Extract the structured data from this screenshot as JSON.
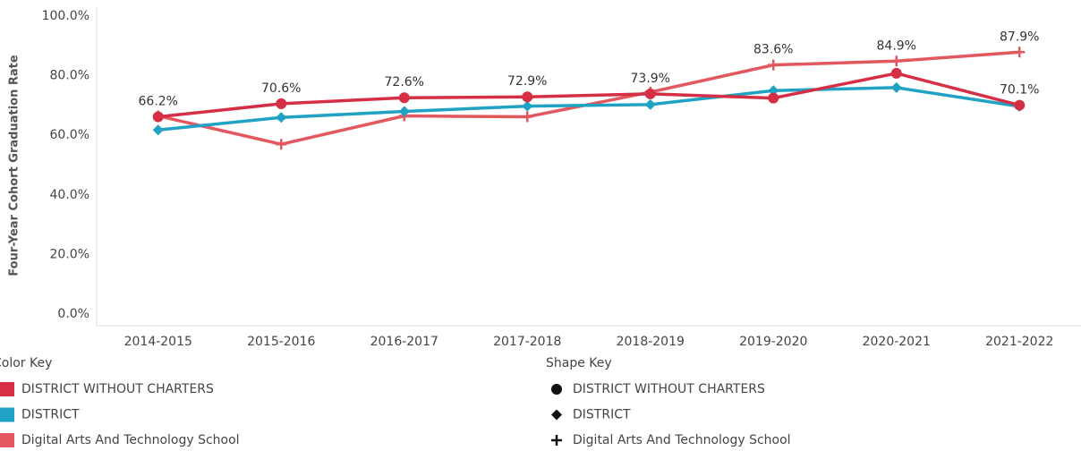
{
  "chart_data": {
    "type": "line",
    "y_label": "Four-Year Cohort Graduation Rate",
    "categories": [
      "2014-2015",
      "2015-2016",
      "2016-2017",
      "2017-2018",
      "2018-2019",
      "2019-2020",
      "2020-2021",
      "2021-2022"
    ],
    "series": [
      {
        "name": "DISTRICT WITHOUT CHARTERS",
        "color": "#d62e45",
        "marker": "circle",
        "values": [
          66.2,
          70.6,
          72.6,
          72.9,
          73.9,
          72.5,
          80.8,
          70.1
        ],
        "value_labels": [
          "66.2%",
          "70.6%",
          "72.6%",
          "72.9%",
          "73.9%",
          null,
          null,
          "70.1%"
        ]
      },
      {
        "name": "DISTRICT",
        "color": "#1fa2c3",
        "marker": "diamond",
        "values": [
          61.8,
          66.0,
          68.0,
          69.8,
          70.3,
          75.0,
          76.0,
          69.7
        ]
      },
      {
        "name": "Digital Arts And Technology School",
        "color": "#e2585e",
        "marker": "plus",
        "values": [
          66.5,
          57.0,
          66.5,
          66.2,
          74.5,
          83.6,
          84.9,
          87.9
        ],
        "value_labels": [
          null,
          null,
          null,
          null,
          null,
          "83.6%",
          "84.9%",
          "87.9%"
        ]
      }
    ],
    "ylim": [
      0,
      100
    ],
    "yticks": [
      {
        "value": 0,
        "label": "0.0%"
      },
      {
        "value": 20,
        "label": "20.0%"
      },
      {
        "value": 40,
        "label": "40.0%"
      },
      {
        "value": 60,
        "label": "60.0%"
      },
      {
        "value": 80,
        "label": "80.0%"
      },
      {
        "value": 100,
        "label": "100.0%"
      }
    ],
    "legend_color_title": "Color Key",
    "legend_shape_title": "Shape Key"
  }
}
